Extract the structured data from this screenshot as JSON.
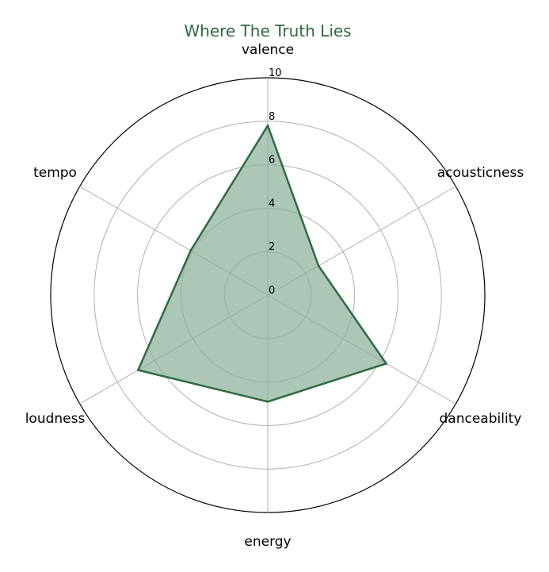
{
  "chart_data": {
    "type": "radar",
    "title": "Where The Truth Lies",
    "categories": [
      "valence",
      "acousticness",
      "danceability",
      "energy",
      "loudness",
      "tempo"
    ],
    "series": [
      {
        "values": [
          7.8,
          2.7,
          6.3,
          4.9,
          6.9,
          4.1
        ]
      }
    ],
    "rlim": [
      0,
      10
    ],
    "rticks": [
      "0",
      "2",
      "4",
      "6",
      "8",
      "10"
    ],
    "grid": true,
    "colors": {
      "line": "#2e6b41",
      "fill": "#8cb09b",
      "title": "#2e6b41",
      "grid": "#b0b0b0",
      "frame": "#000000"
    }
  }
}
